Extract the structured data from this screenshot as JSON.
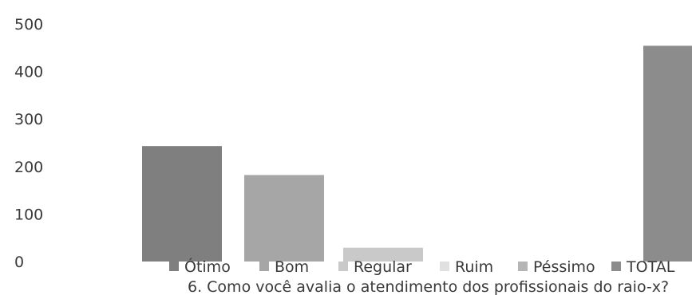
{
  "chart_data": {
    "type": "bar",
    "categories": [
      "Ótimo",
      "Bom",
      "Regular",
      "Ruim",
      "Péssimo",
      "TOTAL"
    ],
    "values": [
      243,
      182,
      29,
      0,
      0,
      454
    ],
    "colors": [
      "#7f7f7f",
      "#a6a6a6",
      "#c9c9c9",
      "#e0e0e0",
      "#b5b5b5",
      "#8c8c8c"
    ],
    "title": "",
    "xlabel": "6. Como você avalia o atendimento dos profissionais do raio-x?",
    "ylabel": "",
    "ylim": [
      0,
      500
    ],
    "yticks": [
      0,
      100,
      200,
      300,
      400,
      500
    ],
    "grid": false,
    "legend": {
      "placement": "bottom",
      "entries": [
        "Ótimo",
        "Bom",
        "Regular",
        "Ruim",
        "Péssimo",
        "TOTAL"
      ]
    }
  }
}
